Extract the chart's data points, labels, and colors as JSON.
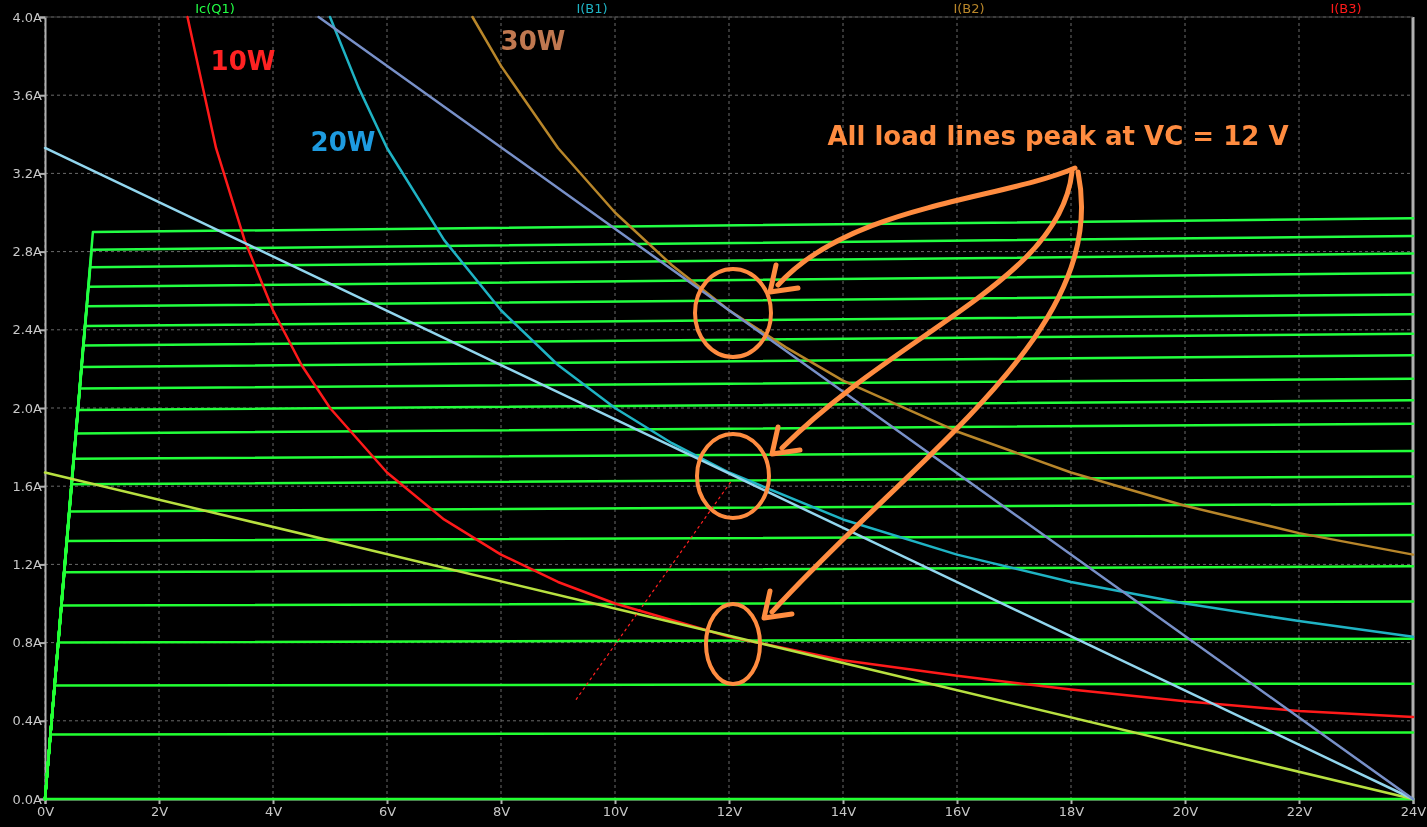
{
  "chart_data": {
    "type": "line",
    "legend": "top",
    "grid": true,
    "marker": "none",
    "line_style": "solid",
    "xlim": [
      0,
      24
    ],
    "ylim": [
      0,
      4
    ],
    "xticks": [
      {
        "value": 0,
        "label": "0V"
      },
      {
        "value": 2,
        "label": "2V"
      },
      {
        "value": 4,
        "label": "4V"
      },
      {
        "value": 6,
        "label": "6V"
      },
      {
        "value": 8,
        "label": "8V"
      },
      {
        "value": 10,
        "label": "10V"
      },
      {
        "value": 12,
        "label": "12V"
      },
      {
        "value": 14,
        "label": "14V"
      },
      {
        "value": 16,
        "label": "16V"
      },
      {
        "value": 18,
        "label": "18V"
      },
      {
        "value": 20,
        "label": "20V"
      },
      {
        "value": 22,
        "label": "22V"
      },
      {
        "value": 24,
        "label": "24V"
      }
    ],
    "yticks": [
      {
        "value": 0,
        "label": "0.0A"
      },
      {
        "value": 0.4,
        "label": "0.4A"
      },
      {
        "value": 0.8,
        "label": "0.8A"
      },
      {
        "value": 1.2,
        "label": "1.2A"
      },
      {
        "value": 1.6,
        "label": "1.6A"
      },
      {
        "value": 2,
        "label": "2.0A"
      },
      {
        "value": 2.4,
        "label": "2.4A"
      },
      {
        "value": 2.8,
        "label": "2.8A"
      },
      {
        "value": 3.2,
        "label": "3.2A"
      },
      {
        "value": 3.6,
        "label": "3.6A"
      },
      {
        "value": 4,
        "label": "4.0A"
      }
    ],
    "annotations": [
      "10W",
      "20W",
      "30W",
      "All load lines peak at VC = 12 V"
    ],
    "series": [
      {
        "name": "Ic(Q1)",
        "color": "#22ff44",
        "x": [
          0,
          0.84,
          24
        ],
        "values": [
          0,
          2.9,
          2.97
        ]
      },
      {
        "color": "#22ff43",
        "x": [
          0,
          0.82,
          24
        ],
        "values": [
          0,
          2.81,
          2.88
        ]
      },
      {
        "color": "#22ff42",
        "x": [
          0,
          0.79,
          24
        ],
        "values": [
          0,
          2.72,
          2.79
        ]
      },
      {
        "color": "#22ff41",
        "x": [
          0,
          0.76,
          24
        ],
        "values": [
          0,
          2.62,
          2.69
        ]
      },
      {
        "color": "#22ff40",
        "x": [
          0,
          0.73,
          24
        ],
        "values": [
          0,
          2.52,
          2.58
        ]
      },
      {
        "color": "#22ff3f",
        "x": [
          0,
          0.7,
          24
        ],
        "values": [
          0,
          2.42,
          2.48
        ]
      },
      {
        "color": "#22ff3e",
        "x": [
          0,
          0.67,
          24
        ],
        "values": [
          0,
          2.32,
          2.38
        ]
      },
      {
        "color": "#22ff3d",
        "x": [
          0,
          0.64,
          24
        ],
        "values": [
          0,
          2.21,
          2.27
        ]
      },
      {
        "color": "#22ff3c",
        "x": [
          0,
          0.61,
          24
        ],
        "values": [
          0,
          2.1,
          2.15
        ]
      },
      {
        "color": "#22ff3b",
        "x": [
          0,
          0.58,
          24
        ],
        "values": [
          0,
          1.99,
          2.04
        ]
      },
      {
        "color": "#22ff3a",
        "x": [
          0,
          0.54,
          24
        ],
        "values": [
          0,
          1.87,
          1.92
        ]
      },
      {
        "color": "#22ff39",
        "x": [
          0,
          0.5,
          24
        ],
        "values": [
          0,
          1.74,
          1.78
        ]
      },
      {
        "color": "#22ff38",
        "x": [
          0,
          0.47,
          24
        ],
        "values": [
          0,
          1.61,
          1.65
        ]
      },
      {
        "color": "#22ff37",
        "x": [
          0,
          0.43,
          24
        ],
        "values": [
          0,
          1.47,
          1.51
        ]
      },
      {
        "color": "#22ff36",
        "x": [
          0,
          0.38,
          24
        ],
        "values": [
          0,
          1.32,
          1.35
        ]
      },
      {
        "color": "#22ff35",
        "x": [
          0,
          0.34,
          24
        ],
        "values": [
          0,
          1.16,
          1.19
        ]
      },
      {
        "color": "#22ff34",
        "x": [
          0,
          0.29,
          24
        ],
        "values": [
          0,
          0.99,
          1.01
        ]
      },
      {
        "color": "#22ff33",
        "x": [
          0,
          0.23,
          24
        ],
        "values": [
          0,
          0.8,
          0.82
        ]
      },
      {
        "color": "#22ff32",
        "x": [
          0,
          0.17,
          24
        ],
        "values": [
          0,
          0.58,
          0.59
        ]
      },
      {
        "color": "#22ff31",
        "x": [
          0,
          0.1,
          24
        ],
        "values": [
          0,
          0.33,
          0.34
        ]
      },
      {
        "color": "#22ff30",
        "x": [
          0,
          24
        ],
        "values": [
          0,
          0
        ]
      },
      {
        "name": "I(B1)",
        "color": "#1fb3c4",
        "x": [
          5,
          5.5,
          6,
          7,
          8,
          9,
          10,
          11,
          12,
          14,
          16,
          18,
          20,
          22,
          24
        ],
        "values": [
          4,
          3.64,
          3.33,
          2.86,
          2.5,
          2.22,
          2,
          1.82,
          1.67,
          1.43,
          1.25,
          1.11,
          1,
          0.91,
          0.83
        ]
      },
      {
        "name": "I(B2)",
        "color": "#b8862a",
        "x": [
          7.5,
          8,
          9,
          10,
          11,
          12,
          13,
          14,
          16,
          18,
          20,
          22,
          24
        ],
        "values": [
          4,
          3.75,
          3.33,
          3,
          2.73,
          2.5,
          2.31,
          2.14,
          1.88,
          1.67,
          1.5,
          1.36,
          1.25
        ]
      },
      {
        "name": "I(B3)",
        "color": "#ff1a1a",
        "x": [
          2.5,
          3,
          3.5,
          4,
          4.5,
          5,
          6,
          7,
          8,
          9,
          10,
          12,
          14,
          16,
          18,
          20,
          22,
          24
        ],
        "values": [
          4,
          3.33,
          2.86,
          2.5,
          2.22,
          2,
          1.67,
          1.43,
          1.25,
          1.11,
          1,
          0.83,
          0.71,
          0.63,
          0.56,
          0.5,
          0.45,
          0.42
        ]
      },
      {
        "color": "#b8e040",
        "x": [
          0,
          24
        ],
        "values": [
          1.67,
          0
        ]
      },
      {
        "color": "#92d6ee",
        "x": [
          0,
          24
        ],
        "values": [
          3.33,
          0
        ]
      },
      {
        "color": "#7890c8",
        "x": [
          4.8,
          24
        ],
        "values": [
          4,
          0
        ]
      },
      {
        "color": "#ff2020",
        "line_style": "dotted",
        "x": [
          9.32,
          12.05
        ],
        "values": [
          0.51,
          1.63
        ]
      }
    ]
  }
}
